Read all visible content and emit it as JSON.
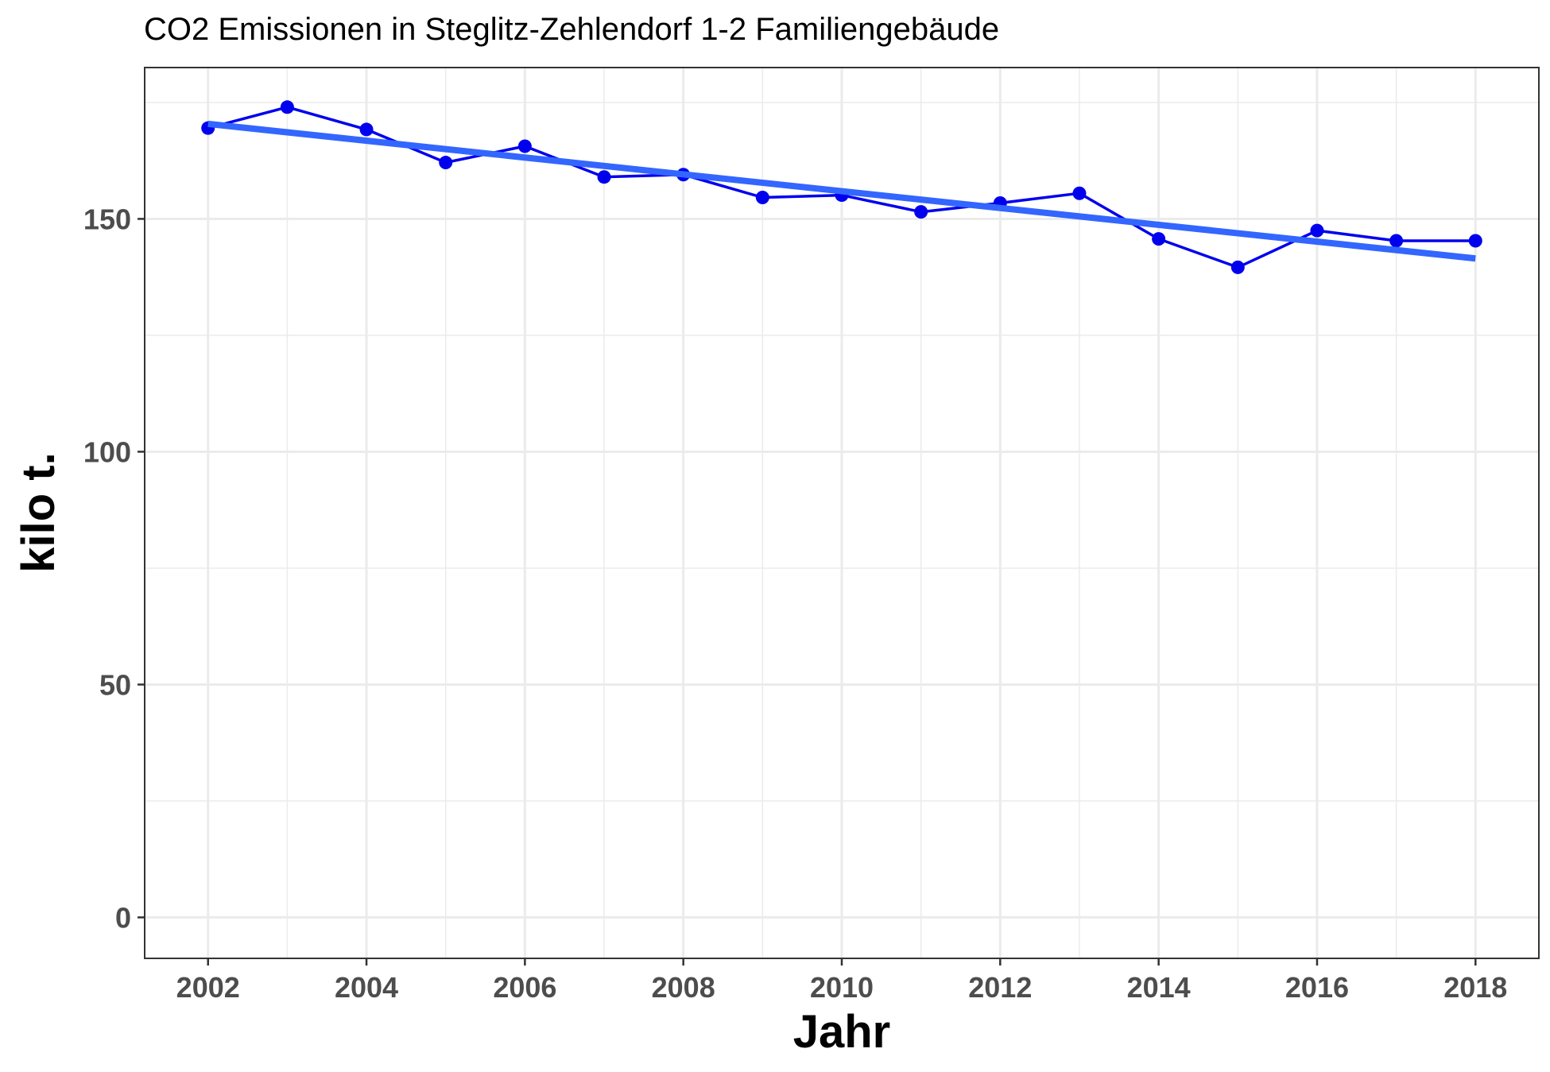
{
  "chart_data": {
    "type": "line",
    "title": "CO2 Emissionen in Steglitz-Zehlendorf 1-2 Familiengebäude",
    "xlabel": "Jahr",
    "ylabel": "kilo t.",
    "xlim": [
      2001.2,
      2018.8
    ],
    "ylim": [
      -8.8,
      182.5
    ],
    "x_ticks": [
      2002,
      2004,
      2006,
      2008,
      2010,
      2012,
      2014,
      2016,
      2018
    ],
    "x_tick_labels": [
      "2002",
      "2004",
      "2006",
      "2008",
      "2010",
      "2012",
      "2014",
      "2016",
      "2018"
    ],
    "y_ticks": [
      0,
      50,
      100,
      150
    ],
    "y_tick_labels": [
      "0",
      "50",
      "100",
      "150"
    ],
    "grid": true,
    "legend": "none",
    "series": [
      {
        "x": [
          2002,
          2003,
          2004,
          2005,
          2006,
          2007,
          2008,
          2009,
          2010,
          2011,
          2012,
          2013,
          2014,
          2015,
          2016,
          2017,
          2018
        ],
        "values": [
          169.5,
          174.0,
          169.2,
          162.1,
          165.6,
          159.0,
          159.5,
          154.6,
          155.1,
          151.5,
          153.4,
          155.5,
          145.7,
          139.6,
          147.5,
          145.3,
          145.3
        ],
        "color": "#0000ee"
      }
    ],
    "trend_line": {
      "x": [
        2002,
        2018
      ],
      "values": [
        170.4,
        141.5
      ],
      "color": "#3366ff"
    }
  }
}
